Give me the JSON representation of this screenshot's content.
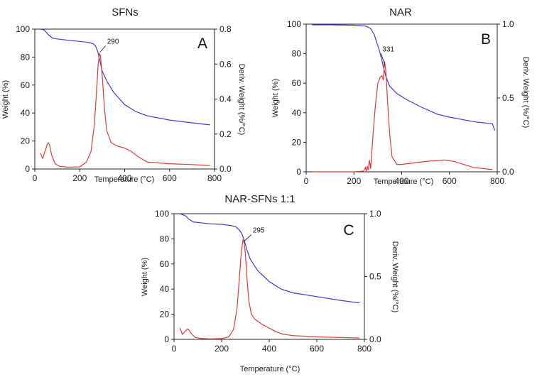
{
  "chart_data": [
    {
      "type": "line",
      "title": "SFNs",
      "panel_label": "A",
      "xlabel": "Temperature (°C)",
      "ylabel": "Weight (%)",
      "y2label": "Deriv. Weight (%/°C)",
      "xlim": [
        0,
        800
      ],
      "ylim": [
        0,
        100
      ],
      "y2lim": [
        0,
        0.8
      ],
      "x_ticks": [
        "0",
        "200",
        "400",
        "600",
        "800"
      ],
      "y_ticks": [
        "0",
        "20",
        "40",
        "60",
        "80",
        "100"
      ],
      "y2_ticks": [
        "0.0",
        "0.2",
        "0.4",
        "0.6",
        "0.8"
      ],
      "peak_label": "290",
      "peak_x": 290,
      "series": [
        {
          "name": "Weight",
          "axis": "left",
          "color": "#3a3ad8",
          "x": [
            25,
            40,
            50,
            60,
            80,
            100,
            150,
            200,
            240,
            260,
            270,
            280,
            290,
            300,
            320,
            350,
            400,
            450,
            500,
            600,
            700,
            780
          ],
          "y": [
            100,
            99.5,
            98,
            96,
            93.5,
            93,
            92,
            91.2,
            90.5,
            89.5,
            88,
            84,
            77,
            70,
            63,
            55,
            46,
            41,
            38,
            35,
            33,
            31.5
          ]
        },
        {
          "name": "Deriv. Weight",
          "axis": "right",
          "color": "#e03a3a",
          "x": [
            25,
            35,
            45,
            55,
            60,
            65,
            75,
            90,
            110,
            150,
            200,
            230,
            250,
            265,
            275,
            282,
            288,
            292,
            296,
            302,
            310,
            320,
            340,
            370,
            400,
            430,
            460,
            500,
            600,
            700,
            780
          ],
          "y": [
            0.09,
            0.06,
            0.1,
            0.14,
            0.15,
            0.14,
            0.08,
            0.03,
            0.015,
            0.01,
            0.012,
            0.04,
            0.1,
            0.25,
            0.45,
            0.6,
            0.66,
            0.65,
            0.6,
            0.5,
            0.35,
            0.22,
            0.15,
            0.13,
            0.12,
            0.1,
            0.07,
            0.04,
            0.03,
            0.025,
            0.02
          ]
        }
      ]
    },
    {
      "type": "line",
      "title": "NAR",
      "panel_label": "B",
      "xlabel": "Temperature (°C)",
      "ylabel": "Weight (%)",
      "y2label": "Deriv. Weight (%/°C)",
      "xlim": [
        0,
        800
      ],
      "ylim": [
        0,
        100
      ],
      "y2lim": [
        0,
        1.0
      ],
      "x_ticks": [
        "0",
        "200",
        "400",
        "600",
        "800"
      ],
      "y_ticks": [
        "0",
        "20",
        "40",
        "60",
        "80",
        "100"
      ],
      "y2_ticks": [
        "0.0",
        "0.5",
        "1.0"
      ],
      "peak_label": "331",
      "peak_x": 331,
      "series": [
        {
          "name": "Weight",
          "axis": "left",
          "color": "#3a3ad8",
          "x": [
            25,
            100,
            200,
            250,
            270,
            285,
            295,
            305,
            315,
            325,
            335,
            350,
            380,
            420,
            480,
            550,
            600,
            700,
            780,
            785,
            790
          ],
          "y": [
            99.5,
            99.5,
            99.3,
            98.7,
            97,
            93,
            88,
            83,
            77,
            70,
            64,
            58,
            53,
            49,
            44,
            39,
            37,
            34,
            32.5,
            30,
            28
          ]
        },
        {
          "name": "Deriv. Weight",
          "axis": "right",
          "color": "#e03a3a",
          "x": [
            25,
            200,
            240,
            248,
            252,
            256,
            260,
            265,
            270,
            280,
            290,
            300,
            310,
            318,
            323,
            328,
            331,
            334,
            340,
            350,
            360,
            380,
            400,
            450,
            500,
            580,
            620,
            700,
            780
          ],
          "y": [
            0,
            0,
            0.005,
            0.03,
            0.005,
            0.04,
            0.01,
            0.08,
            0.02,
            0.25,
            0.45,
            0.6,
            0.64,
            0.65,
            0.62,
            0.75,
            0.71,
            0.68,
            0.5,
            0.25,
            0.1,
            0.05,
            0.05,
            0.06,
            0.07,
            0.08,
            0.07,
            0.03,
            0.015
          ]
        }
      ]
    },
    {
      "type": "line",
      "title": "NAR-SFNs 1:1",
      "panel_label": "C",
      "xlabel": "Temperature (°C)",
      "ylabel": "Weight (%)",
      "y2label": "Deriv. Weight (%/°C)",
      "xlim": [
        0,
        800
      ],
      "ylim": [
        0,
        100
      ],
      "y2lim": [
        0,
        1.0
      ],
      "x_ticks": [
        "0",
        "200",
        "400",
        "600",
        "800"
      ],
      "y_ticks": [
        "0",
        "20",
        "40",
        "60",
        "80",
        "100"
      ],
      "y2_ticks": [
        "0.0",
        "0.5",
        "1.0"
      ],
      "peak_label": "295",
      "peak_x": 295,
      "series": [
        {
          "name": "Weight",
          "axis": "left",
          "color": "#3a3ad8",
          "x": [
            25,
            40,
            50,
            60,
            80,
            100,
            150,
            200,
            240,
            260,
            275,
            285,
            295,
            305,
            320,
            350,
            400,
            450,
            500,
            600,
            700,
            780
          ],
          "y": [
            100,
            99,
            98,
            96,
            93.5,
            93,
            92,
            91.5,
            90.5,
            89.5,
            87,
            84,
            79,
            72,
            64,
            55,
            46,
            40,
            37,
            34,
            31,
            29
          ]
        },
        {
          "name": "Deriv. Weight",
          "axis": "right",
          "color": "#e03a3a",
          "x": [
            25,
            35,
            45,
            55,
            60,
            65,
            75,
            90,
            110,
            150,
            200,
            230,
            250,
            265,
            275,
            283,
            290,
            295,
            300,
            308,
            315,
            325,
            340,
            370,
            400,
            430,
            460,
            500,
            600,
            700,
            780
          ],
          "y": [
            0.09,
            0.04,
            0.06,
            0.08,
            0.08,
            0.07,
            0.04,
            0.015,
            0.008,
            0.004,
            0.006,
            0.02,
            0.08,
            0.25,
            0.5,
            0.7,
            0.79,
            0.77,
            0.68,
            0.45,
            0.3,
            0.2,
            0.16,
            0.12,
            0.09,
            0.06,
            0.04,
            0.03,
            0.02,
            0.015,
            0.01
          ]
        }
      ]
    }
  ]
}
